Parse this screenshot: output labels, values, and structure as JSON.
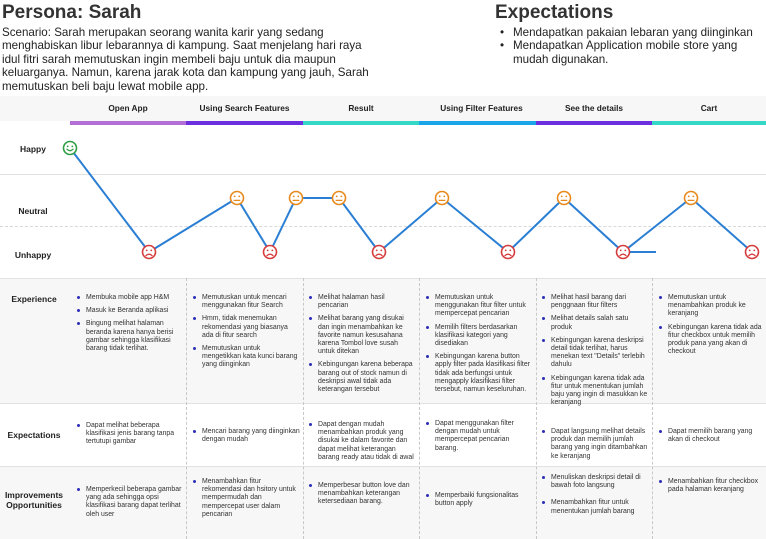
{
  "persona": {
    "title": "Persona: Sarah",
    "scenario": "Scenario: Sarah merupakan seorang wanita karir yang sedang menghabiskan libur lebarannya di kampung. Saat menjelang hari raya idul fitri sarah memutuskan ingin membeli baju untuk dia maupun keluarganya. Namun, karena jarak kota dan kampung yang jauh, Sarah memutuskan beli baju lewat mobile app."
  },
  "expectations_header": {
    "title": "Expectations",
    "items": [
      "Mendapatkan pakaian lebaran yang diinginkan",
      "Mendapatkan Application mobile store yang mudah digunakan."
    ]
  },
  "stages": [
    {
      "label": "Open App",
      "color": "#b46fd6"
    },
    {
      "label": "Using Search Features",
      "color": "#6b2fe0"
    },
    {
      "label": "Result",
      "color": "#35d8c6"
    },
    {
      "label": "Using Filter Features",
      "color": "#1aa6e8"
    },
    {
      "label": "See the details",
      "color": "#6b2fe0"
    },
    {
      "label": "Cart",
      "color": "#35d8c6"
    }
  ],
  "emotion_levels": {
    "happy": "Happy",
    "neutral": "Neutral",
    "unhappy": "Unhappy"
  },
  "journey": {
    "line_color": "#2a7fd4",
    "happy_color": "#2f9e44",
    "neutral_color": "#e8891c",
    "unhappy_color": "#d63b3b",
    "points": [
      {
        "stage": 1,
        "emotion": "happy"
      },
      {
        "stage": 1,
        "emotion": "unhappy"
      },
      {
        "stage": 2,
        "emotion": "neutral"
      },
      {
        "stage": 2,
        "emotion": "unhappy"
      },
      {
        "stage": 2,
        "emotion": "neutral"
      },
      {
        "stage": 3,
        "emotion": "neutral"
      },
      {
        "stage": 3,
        "emotion": "unhappy"
      },
      {
        "stage": 4,
        "emotion": "neutral"
      },
      {
        "stage": 4,
        "emotion": "unhappy"
      },
      {
        "stage": 5,
        "emotion": "neutral"
      },
      {
        "stage": 5,
        "emotion": "unhappy"
      },
      {
        "stage": 6,
        "emotion": "neutral"
      },
      {
        "stage": 6,
        "emotion": "unhappy"
      }
    ]
  },
  "rows": {
    "experience": {
      "label": "Experience",
      "cells": [
        [
          "Membuka mobile app H&M",
          "Masuk ke Beranda aplikasi",
          "Bingung melihat halaman beranda karena hanya berisi gambar sehingga klasifikasi barang tidak terlihat."
        ],
        [
          "Memutuskan untuk mencari menggunakan fitur Search",
          "Hmm, tidak menemukan rekomendasi yang biasanya ada di fitur search",
          "Memutuskan untuk mengetikkan kata kunci barang yang diinginkan"
        ],
        [
          "Melihat halaman hasil pencarian",
          "Melihat barang yang disukai dan ingin menambahkan ke favorite namun kesusahana karena Tombol love susah untuk ditekan",
          "Kebingungan karena beberapa barang out of stock namun di deskripsi awal tidak ada keterangan tersebut"
        ],
        [
          "Memutuskan untuk menggunakan fitur filter untuk mempercepat pencarian",
          "Memilih filters berdasarkan klasifikasi kategori yang disediakan",
          "Kebingungan karena button apply filter pada klasifikasi filter tidak ada berfungsi untuk mengapply klasifikasi filter tersebut, namun keseluruhan."
        ],
        [
          "Melihat hasil barang dari penggnaan fitur filters",
          "Melihat details salah satu produk",
          "Kebingungan karena deskripsi detail tidak terlihat, harus menekan text \"Details\" terlebih dahulu",
          "Kebingungan karena tidak ada fitur untuk menentukan jumlah baju yang ingin di masukkan ke keranjang"
        ],
        [
          "Memutuskan untuk menambahkan produk ke keranjang",
          "Kebingungan karena tidak ada fitur checkbox untuk memilih produk pana yang akan di checkout"
        ]
      ]
    },
    "expectations": {
      "label": "Expectations",
      "cells": [
        [
          "Dapat melihat beberapa klasifikasi jenis barang tanpa tertutupi gambar"
        ],
        [
          "Mencari barang yang diinginkan dengan mudah"
        ],
        [
          "Dapat dengan mudah menambahkan produk yang disukai ke dalam favorite dan dapat melihat keterangan barang ready atau tidak di awal"
        ],
        [
          "Dapat menggunakan filter dengan mudah untuk mempercepat pencarian barang."
        ],
        [
          "Dapat langsung melihat details produk dan memilih jumlah barang yang ingin ditambahkan ke keranjang"
        ],
        [
          "Dapat memilih barang yang akan di checkout"
        ]
      ]
    },
    "improvements": {
      "label": "Improvements Opportunities",
      "cells": [
        [
          "Memperkecil beberapa gambar yang ada sehingga opsi klasifikasi barang dapat terlihat oleh user"
        ],
        [
          "Menambahkan fitur rekomendasi dan hsitory untuk mempermudah dan mempercepat user dalam pencarian"
        ],
        [
          "Memperbesar button love dan menambahkan keterangan ketersediaan barang."
        ],
        [
          "Memperbaiki fungsionalitas button apply"
        ],
        [
          "Menuliskan deskripsi detail di bawah foto langsung",
          "Menambahkan fitur untuk menentukan jumlah barang"
        ],
        [
          "Menambahkan fitur checkbox pada halaman keranjang"
        ]
      ]
    }
  }
}
